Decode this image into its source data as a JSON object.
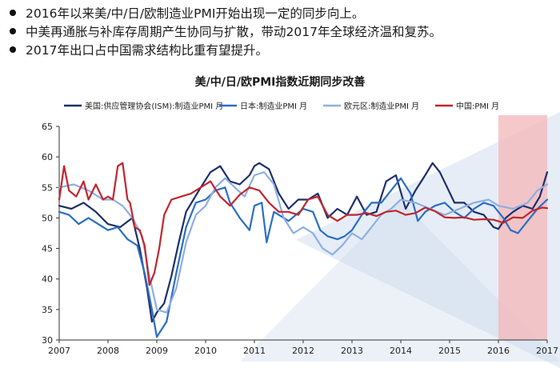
{
  "bullets": [
    "2016年以来美/中/日/欧制造业PMI开始出现一定的同步向上。",
    "中美再通胀与补库存周期产生协同与扩散，带动2017年全球经济温和复苏。",
    "2017年出口占中国需求结构比重有望提升。"
  ],
  "chart_data": {
    "type": "line",
    "title": "美/中/日/欧PMI指数近期同步改善",
    "xlabel": "",
    "ylabel": "",
    "xlim": [
      2007,
      2017
    ],
    "ylim": [
      30,
      65
    ],
    "yticks": [
      30,
      35,
      40,
      45,
      50,
      55,
      60,
      65
    ],
    "xticks": [
      "2007",
      "2008",
      "2009",
      "2010",
      "2011",
      "2012",
      "2013",
      "2014",
      "2015",
      "2016",
      "2017"
    ],
    "highlight": {
      "from": 2016,
      "to": 2017.05,
      "color": "#f4b6b8"
    },
    "legend_position": "top",
    "series": [
      {
        "name": "美国:供应管理协会(ISM):制造业PMI 月",
        "color": "#1d2f6b",
        "x": [
          2007.0,
          2007.25,
          2007.5,
          2007.75,
          2008.0,
          2008.25,
          2008.5,
          2008.65,
          2008.8,
          2008.9,
          2009.0,
          2009.15,
          2009.3,
          2009.45,
          2009.6,
          2009.75,
          2009.9,
          2010.1,
          2010.3,
          2010.5,
          2010.7,
          2010.9,
          2011.0,
          2011.1,
          2011.3,
          2011.5,
          2011.7,
          2011.9,
          2012.1,
          2012.3,
          2012.5,
          2012.7,
          2012.9,
          2013.1,
          2013.3,
          2013.5,
          2013.7,
          2013.9,
          2014.1,
          2014.3,
          2014.5,
          2014.65,
          2014.8,
          2014.95,
          2015.1,
          2015.3,
          2015.5,
          2015.7,
          2015.9,
          2016.0,
          2016.15,
          2016.3,
          2016.5,
          2016.7,
          2016.85,
          2017.0
        ],
        "values": [
          52.0,
          51.5,
          52.5,
          51.0,
          49.0,
          48.5,
          50.0,
          45.0,
          38.5,
          33.0,
          34.5,
          36.0,
          40.5,
          46.0,
          51.0,
          53.0,
          55.0,
          57.5,
          58.5,
          56.0,
          55.5,
          57.0,
          58.5,
          59.0,
          58.0,
          54.0,
          51.5,
          53.0,
          53.0,
          54.0,
          50.0,
          51.5,
          50.5,
          53.5,
          50.5,
          51.0,
          56.0,
          57.0,
          51.5,
          54.5,
          57.0,
          59.0,
          57.5,
          55.0,
          52.5,
          52.5,
          51.0,
          50.5,
          48.5,
          48.2,
          50.0,
          51.0,
          52.0,
          51.5,
          53.5,
          57.5
        ]
      },
      {
        "name": "日本:制造业PMI 月",
        "color": "#2a6ec4",
        "x": [
          2007.0,
          2007.2,
          2007.4,
          2007.6,
          2007.8,
          2008.0,
          2008.2,
          2008.4,
          2008.6,
          2008.75,
          2008.9,
          2009.0,
          2009.2,
          2009.4,
          2009.6,
          2009.8,
          2010.0,
          2010.2,
          2010.4,
          2010.5,
          2010.7,
          2010.9,
          2011.0,
          2011.15,
          2011.25,
          2011.4,
          2011.5,
          2011.7,
          2011.85,
          2012.0,
          2012.2,
          2012.35,
          2012.5,
          2012.7,
          2012.85,
          2013.0,
          2013.2,
          2013.4,
          2013.6,
          2013.8,
          2014.0,
          2014.2,
          2014.35,
          2014.5,
          2014.7,
          2014.9,
          2015.1,
          2015.3,
          2015.5,
          2015.7,
          2015.9,
          2016.1,
          2016.25,
          2016.4,
          2016.6,
          2016.8,
          2017.0
        ],
        "values": [
          51.0,
          50.5,
          49.0,
          50.0,
          49.0,
          48.0,
          48.5,
          46.5,
          45.5,
          41.0,
          35.0,
          30.5,
          33.0,
          41.0,
          48.5,
          52.5,
          53.0,
          54.5,
          55.0,
          52.5,
          50.0,
          48.0,
          52.0,
          52.5,
          46.0,
          51.0,
          50.5,
          49.5,
          50.5,
          51.5,
          51.0,
          48.0,
          47.0,
          46.5,
          47.0,
          48.0,
          50.5,
          52.5,
          52.5,
          54.5,
          56.5,
          54.0,
          49.5,
          51.0,
          52.0,
          52.5,
          51.0,
          50.0,
          51.5,
          52.5,
          52.0,
          50.0,
          48.0,
          47.5,
          49.5,
          51.5,
          53.0
        ]
      },
      {
        "name": "欧元区:制造业PMI 月",
        "color": "#8eaee4",
        "x": [
          2007.0,
          2007.3,
          2007.6,
          2007.9,
          2008.1,
          2008.3,
          2008.5,
          2008.7,
          2008.85,
          2009.0,
          2009.2,
          2009.4,
          2009.6,
          2009.8,
          2010.0,
          2010.2,
          2010.4,
          2010.6,
          2010.8,
          2011.0,
          2011.2,
          2011.4,
          2011.6,
          2011.8,
          2012.0,
          2012.2,
          2012.4,
          2012.6,
          2012.8,
          2013.0,
          2013.2,
          2013.4,
          2013.6,
          2013.8,
          2014.0,
          2014.3,
          2014.6,
          2014.9,
          2015.2,
          2015.5,
          2015.8,
          2016.0,
          2016.3,
          2016.6,
          2016.8,
          2017.0
        ],
        "values": [
          55.0,
          55.5,
          54.5,
          53.0,
          53.0,
          52.0,
          50.0,
          47.0,
          40.5,
          35.0,
          34.5,
          38.5,
          46.0,
          50.5,
          52.0,
          55.0,
          56.5,
          55.0,
          53.5,
          57.0,
          57.5,
          55.5,
          50.0,
          47.5,
          48.5,
          47.5,
          45.0,
          44.0,
          45.5,
          47.5,
          46.5,
          48.5,
          50.5,
          51.5,
          53.0,
          52.5,
          51.5,
          50.5,
          51.5,
          52.5,
          53.0,
          52.0,
          51.5,
          52.5,
          54.5,
          55.5
        ]
      },
      {
        "name": "中国:PMI 月",
        "color": "#c0262d",
        "x": [
          2007.0,
          2007.1,
          2007.2,
          2007.35,
          2007.5,
          2007.6,
          2007.75,
          2007.9,
          2008.0,
          2008.1,
          2008.2,
          2008.3,
          2008.4,
          2008.45,
          2008.55,
          2008.65,
          2008.75,
          2008.85,
          2008.95,
          2009.05,
          2009.15,
          2009.3,
          2009.5,
          2009.7,
          2009.9,
          2010.1,
          2010.3,
          2010.5,
          2010.7,
          2010.9,
          2011.1,
          2011.3,
          2011.5,
          2011.7,
          2011.9,
          2012.1,
          2012.3,
          2012.5,
          2012.7,
          2012.9,
          2013.1,
          2013.3,
          2013.5,
          2013.7,
          2013.9,
          2014.1,
          2014.3,
          2014.5,
          2014.7,
          2014.9,
          2015.1,
          2015.3,
          2015.5,
          2015.7,
          2015.9,
          2016.1,
          2016.3,
          2016.5,
          2016.7,
          2016.9,
          2017.0
        ],
        "values": [
          53.0,
          58.5,
          54.5,
          53.5,
          56.0,
          53.0,
          55.5,
          53.0,
          53.5,
          53.0,
          58.5,
          59.0,
          53.0,
          52.5,
          48.5,
          48.0,
          45.5,
          39.0,
          41.0,
          45.0,
          50.5,
          53.0,
          53.5,
          54.0,
          55.0,
          56.0,
          53.5,
          52.0,
          53.8,
          55.0,
          54.5,
          52.5,
          51.0,
          51.0,
          50.5,
          53.0,
          53.5,
          50.5,
          49.5,
          50.5,
          50.5,
          50.8,
          50.3,
          51.0,
          51.2,
          50.5,
          50.8,
          51.7,
          51.1,
          50.1,
          50.0,
          50.1,
          49.7,
          49.8,
          49.7,
          49.2,
          50.1,
          50.0,
          51.2,
          51.7,
          51.6
        ]
      }
    ]
  }
}
